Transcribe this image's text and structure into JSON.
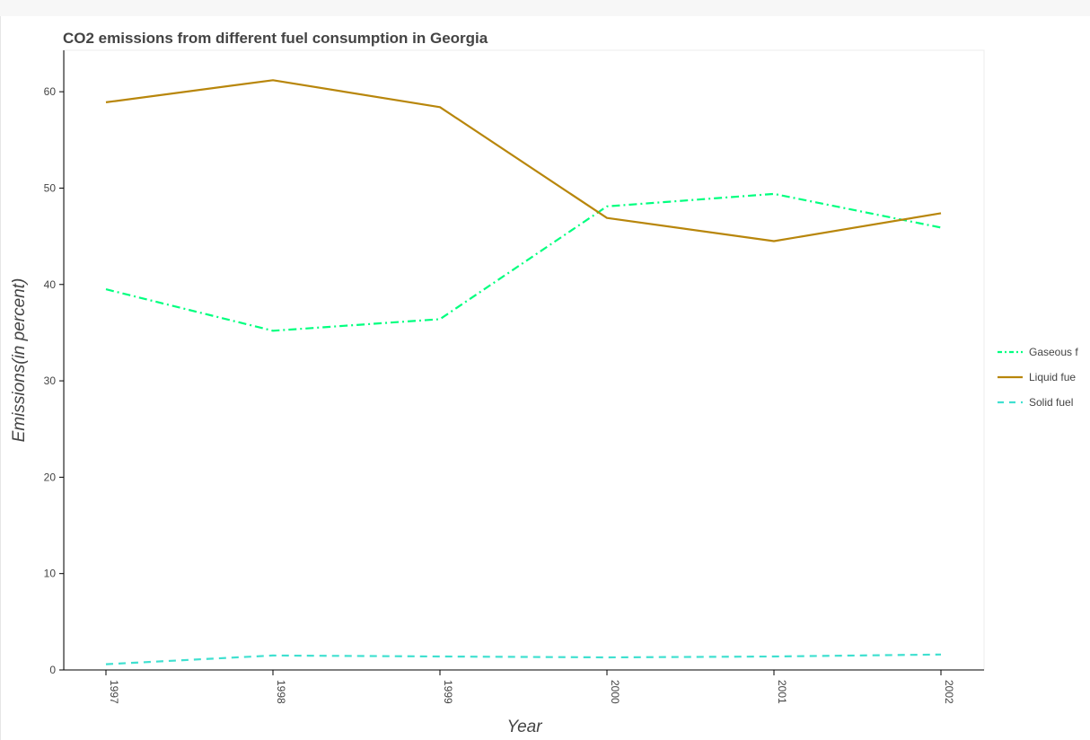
{
  "chart_data": {
    "type": "line",
    "title": "CO2 emissions from different fuel consumption in Georgia",
    "xlabel": "Year",
    "ylabel": "Emissions(in percent)",
    "x": [
      "1997",
      "1998",
      "1999",
      "2000",
      "2001",
      "2002"
    ],
    "yticks": [
      "0",
      "10",
      "20",
      "30",
      "40",
      "50",
      "60"
    ],
    "ylim": [
      0,
      64.3
    ],
    "grid": false,
    "legend_position": "right",
    "series": [
      {
        "name": "Gaseous fuel",
        "legend_text": "Gaseous f",
        "color": "#00ff7f",
        "dash": "dashdot",
        "values": [
          39.5,
          35.2,
          36.4,
          48.1,
          49.4,
          45.9
        ]
      },
      {
        "name": "Liquid fuel",
        "legend_text": "Liquid fue",
        "color": "#b8860b",
        "dash": "solid",
        "values": [
          58.9,
          61.2,
          58.4,
          46.9,
          44.5,
          47.4
        ]
      },
      {
        "name": "Solid fuel",
        "legend_text": "Solid fuel",
        "color": "#40e0d0",
        "dash": "dashed",
        "values": [
          0.6,
          1.5,
          1.4,
          1.3,
          1.4,
          1.6
        ]
      }
    ]
  }
}
